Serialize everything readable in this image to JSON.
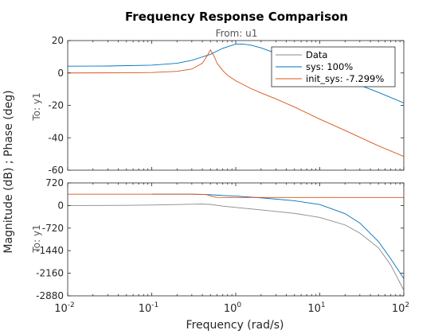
{
  "chart_data": {
    "type": "line",
    "title": "Frequency Response Comparison",
    "subtitle": "From: u1",
    "xlabel": "Frequency  (rad/s)",
    "ylabel": "Magnitude (dB) ; Phase (deg)",
    "x_scale": "log",
    "xlim": [
      0.01,
      100
    ],
    "x_ticks": [
      0.01,
      0.1,
      1,
      10,
      100
    ],
    "x_tick_labels": [
      {
        "base": "10",
        "exp": "-2"
      },
      {
        "base": "10",
        "exp": "-1"
      },
      {
        "base": "10",
        "exp": "0"
      },
      {
        "base": "10",
        "exp": "1"
      },
      {
        "base": "10",
        "exp": "2"
      }
    ],
    "grid": false,
    "legend": {
      "placement": "top-right",
      "entries": [
        {
          "label": "Data",
          "color": "#888888"
        },
        {
          "label": "sys: 100%",
          "color": "#0072BD"
        },
        {
          "label": "init_sys: -7.299%",
          "color": "#D95319"
        }
      ]
    },
    "panels": [
      {
        "name": "magnitude",
        "row_label": "To: y1",
        "ylim": [
          -60,
          20
        ],
        "y_ticks": [
          20,
          0,
          -20,
          -40,
          -60
        ],
        "y_tick_labels": [
          "20",
          "0",
          "-20",
          "-40",
          "-60"
        ],
        "series": [
          {
            "name": "sys: 100%",
            "color": "#0072BD",
            "x": [
              0.01,
              0.03,
              0.1,
              0.2,
              0.3,
              0.5,
              0.7,
              1.0,
              1.2,
              1.5,
              2,
              3,
              5,
              10,
              20,
              50,
              100
            ],
            "y": [
              4.2,
              4.3,
              4.8,
              6.0,
              7.8,
              11.5,
              15.2,
              17.8,
              17.9,
              17.2,
              15.5,
              12.2,
              8.0,
              2.0,
              -4.0,
              -12.0,
              -18.5
            ]
          },
          {
            "name": "init_sys: -7.299%",
            "color": "#D95319",
            "x": [
              0.01,
              0.05,
              0.1,
              0.2,
              0.3,
              0.4,
              0.45,
              0.5,
              0.55,
              0.6,
              0.7,
              0.8,
              1.0,
              1.5,
              2,
              3,
              5,
              10,
              20,
              50,
              100
            ],
            "y": [
              0.0,
              0.1,
              0.3,
              1.0,
              2.4,
              6.0,
              10.0,
              14.2,
              10.5,
              6.0,
              1.5,
              -1.5,
              -4.8,
              -9.5,
              -12.3,
              -16.0,
              -21.0,
              -28.5,
              -35.5,
              -45.0,
              -51.5
            ]
          }
        ]
      },
      {
        "name": "phase",
        "row_label": "To: y1",
        "ylim": [
          -2880,
          720
        ],
        "y_ticks": [
          720,
          0,
          -720,
          -1440,
          -2160,
          -2880
        ],
        "y_tick_labels": [
          "720",
          "0",
          "-720",
          "-1440",
          "-2160",
          "-2880"
        ],
        "series": [
          {
            "name": "Data",
            "color": "#888888",
            "x": [
              0.01,
              0.05,
              0.1,
              0.2,
              0.3,
              0.4,
              0.5,
              0.7,
              1,
              2,
              5,
              10,
              20,
              30,
              50,
              70,
              100
            ],
            "y": [
              0,
              5,
              15,
              30,
              40,
              45,
              35,
              -20,
              -60,
              -140,
              -250,
              -380,
              -620,
              -880,
              -1350,
              -1900,
              -2700
            ]
          },
          {
            "name": "sys: 100%",
            "color": "#0072BD",
            "x": [
              0.1,
              0.2,
              0.3,
              0.4,
              0.5,
              0.6,
              0.7,
              1,
              2,
              5,
              10,
              20,
              30,
              50,
              70,
              100
            ],
            "y": [
              360,
              360,
              360,
              355,
              345,
              330,
              320,
              300,
              245,
              150,
              30,
              -260,
              -560,
              -1150,
              -1700,
              -2330
            ]
          },
          {
            "name": "init_sys: -7.299%",
            "color": "#D95319",
            "x": [
              0.01,
              0.1,
              0.3,
              0.4,
              0.45,
              0.5,
              0.55,
              0.6,
              0.8,
              1,
              10,
              100
            ],
            "y": [
              360,
              360,
              360,
              355,
              345,
              310,
              275,
              260,
              255,
              255,
              255,
              255
            ]
          }
        ]
      }
    ]
  }
}
